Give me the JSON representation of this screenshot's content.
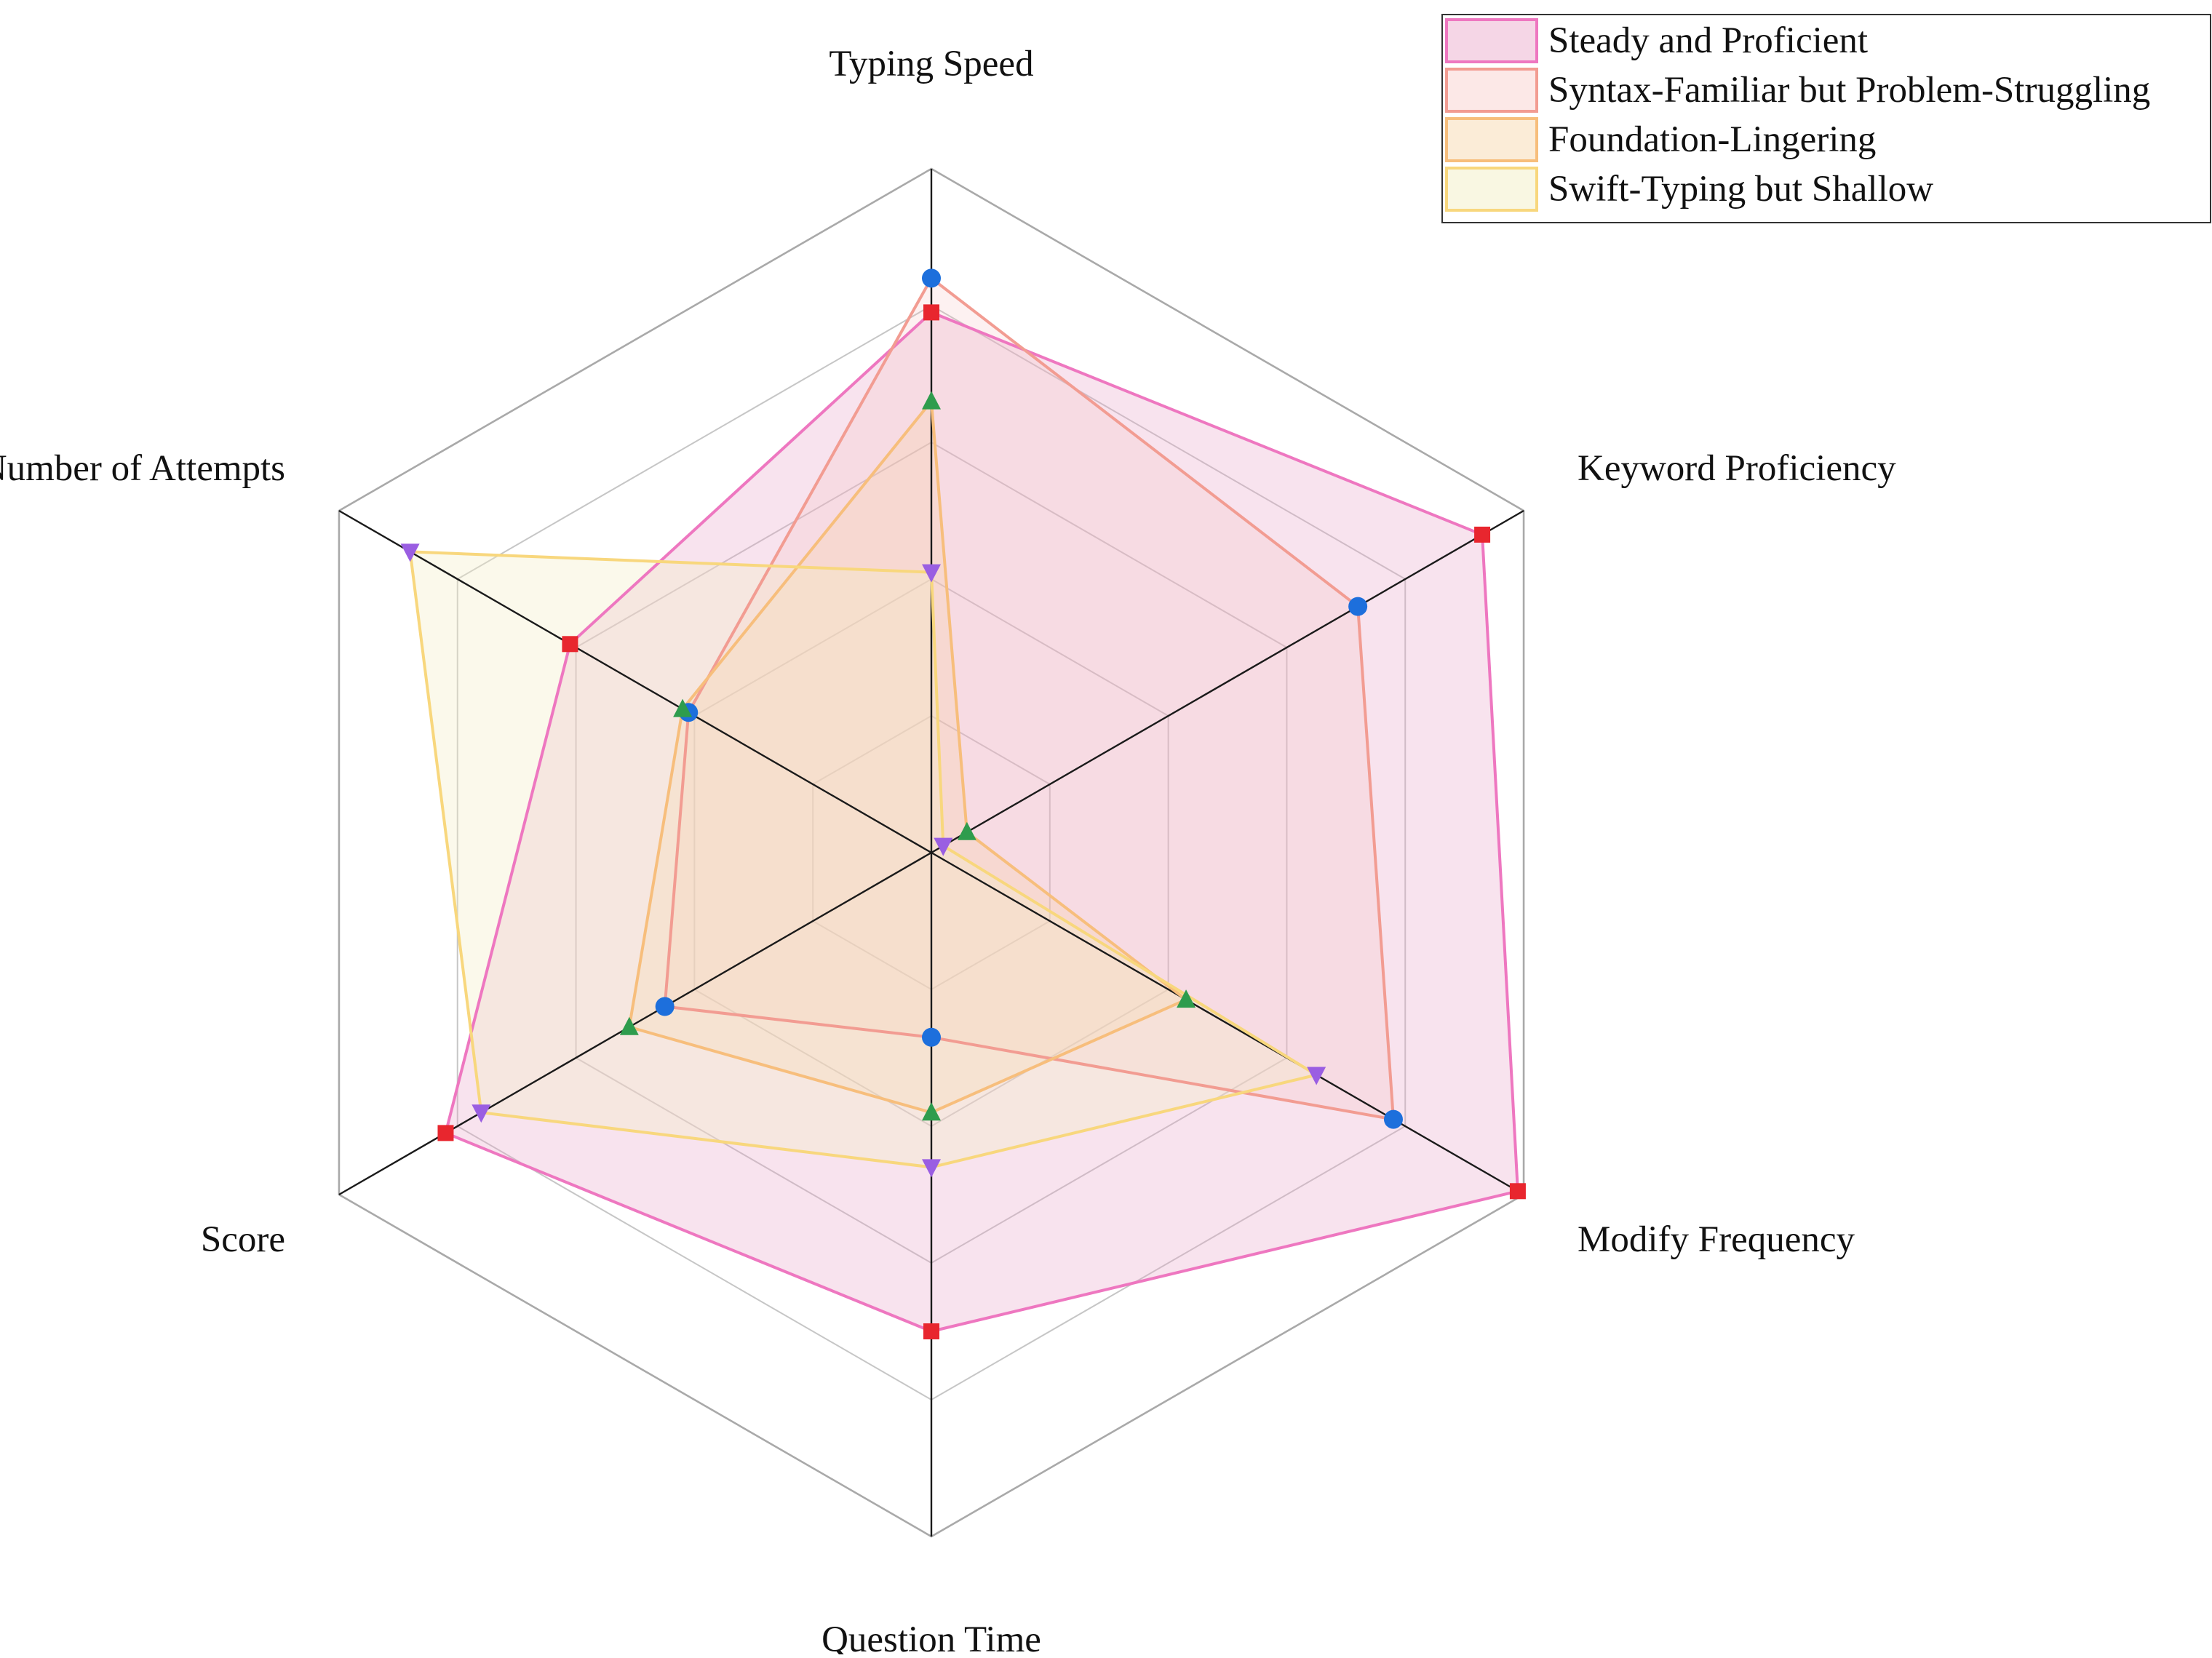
{
  "chart_data": {
    "type": "radar",
    "axes": [
      "Typing Speed",
      "Keyword Proficiency",
      "Modify Frequency",
      "Question Time",
      "Score",
      "Number of Attempts"
    ],
    "range": [
      0,
      1
    ],
    "grid": true,
    "grid_levels": 5,
    "legend_position": "top-right",
    "series": [
      {
        "name": "Steady and Proficient",
        "values": [
          0.79,
          0.93,
          0.99,
          0.7,
          0.82,
          0.61
        ],
        "line_color": "#ee77c0",
        "fill_color": "#e8a3c8",
        "fill_opacity": 0.3,
        "marker": "square",
        "marker_color": "#e8262e"
      },
      {
        "name": "Syntax-Familiar but Problem-Struggling",
        "values": [
          0.84,
          0.72,
          0.78,
          0.27,
          0.45,
          0.41
        ],
        "line_color": "#f29c92",
        "fill_color": "#f6c1bd",
        "fill_opacity": 0.22,
        "marker": "circle",
        "marker_color": "#1d6fdc"
      },
      {
        "name": "Foundation-Lingering",
        "values": [
          0.66,
          0.06,
          0.43,
          0.38,
          0.51,
          0.42
        ],
        "line_color": "#f7be7c",
        "fill_color": "#f6cf9a",
        "fill_opacity": 0.25,
        "marker": "triangle-up",
        "marker_color": "#2e9c4d"
      },
      {
        "name": "Swift-Typing but Shallow",
        "values": [
          0.41,
          0.02,
          0.65,
          0.46,
          0.76,
          0.88
        ],
        "line_color": "#f8d77d",
        "fill_color": "#f3efc6",
        "fill_opacity": 0.35,
        "marker": "triangle-down",
        "marker_color": "#9a5ee2"
      }
    ]
  }
}
